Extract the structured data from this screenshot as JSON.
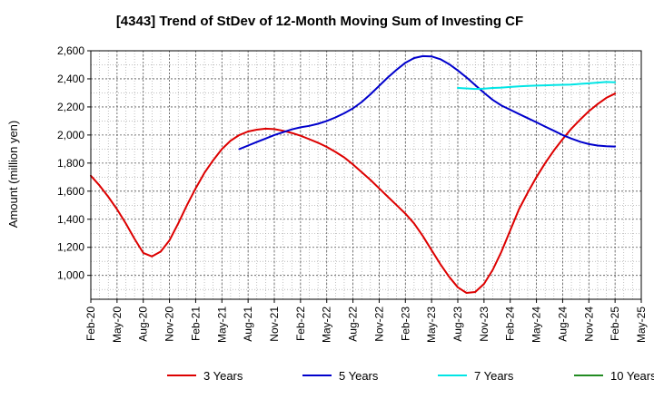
{
  "chart_data": {
    "type": "line",
    "title": "[4343]  Trend of StDev of 12-Month Moving Sum of Investing CF",
    "xlabel": "",
    "ylabel": "Amount (million yen)",
    "ylim": [
      830,
      2600
    ],
    "y_ticks": [
      1000,
      1200,
      1400,
      1600,
      1800,
      2000,
      2200,
      2400,
      2600
    ],
    "y_tick_labels": [
      "1,000",
      "1,200",
      "1,400",
      "1,600",
      "1,800",
      "2,000",
      "2,200",
      "2,400",
      "2,600"
    ],
    "x_tick_labels": [
      "Feb-20",
      "May-20",
      "Aug-20",
      "Nov-20",
      "Feb-21",
      "May-21",
      "Aug-21",
      "Nov-21",
      "Feb-22",
      "May-22",
      "Aug-22",
      "Nov-22",
      "Feb-23",
      "May-23",
      "Aug-23",
      "Nov-23",
      "Feb-24",
      "May-24",
      "Aug-24",
      "Nov-24",
      "Feb-25",
      "May-25"
    ],
    "grid": true,
    "legend_position": "bottom",
    "series": [
      {
        "name": "3 Years",
        "color": "#dd0000",
        "points": [
          [
            "Feb-20",
            1710
          ],
          [
            "Mar-20",
            1640
          ],
          [
            "Apr-20",
            1560
          ],
          [
            "May-20",
            1470
          ],
          [
            "Jun-20",
            1370
          ],
          [
            "Jul-20",
            1260
          ],
          [
            "Aug-20",
            1160
          ],
          [
            "Sep-20",
            1135
          ],
          [
            "Oct-20",
            1170
          ],
          [
            "Nov-20",
            1250
          ],
          [
            "Dec-20",
            1370
          ],
          [
            "Jan-21",
            1500
          ],
          [
            "Feb-21",
            1620
          ],
          [
            "Mar-21",
            1730
          ],
          [
            "Apr-21",
            1820
          ],
          [
            "May-21",
            1900
          ],
          [
            "Jun-21",
            1960
          ],
          [
            "Jul-21",
            2000
          ],
          [
            "Aug-21",
            2025
          ],
          [
            "Sep-21",
            2038
          ],
          [
            "Oct-21",
            2045
          ],
          [
            "Nov-21",
            2042
          ],
          [
            "Dec-21",
            2030
          ],
          [
            "Jan-22",
            2015
          ],
          [
            "Feb-22",
            1995
          ],
          [
            "Mar-22",
            1970
          ],
          [
            "Apr-22",
            1945
          ],
          [
            "May-22",
            1915
          ],
          [
            "Jun-22",
            1880
          ],
          [
            "Jul-22",
            1840
          ],
          [
            "Aug-22",
            1790
          ],
          [
            "Sep-22",
            1735
          ],
          [
            "Oct-22",
            1680
          ],
          [
            "Nov-22",
            1620
          ],
          [
            "Dec-22",
            1560
          ],
          [
            "Jan-23",
            1500
          ],
          [
            "Feb-23",
            1440
          ],
          [
            "Mar-23",
            1370
          ],
          [
            "Apr-23",
            1280
          ],
          [
            "May-23",
            1180
          ],
          [
            "Jun-23",
            1080
          ],
          [
            "Jul-23",
            990
          ],
          [
            "Aug-23",
            915
          ],
          [
            "Sep-23",
            875
          ],
          [
            "Oct-23",
            882
          ],
          [
            "Nov-23",
            940
          ],
          [
            "Dec-23",
            1040
          ],
          [
            "Jan-24",
            1170
          ],
          [
            "Feb-24",
            1320
          ],
          [
            "Mar-24",
            1470
          ],
          [
            "Apr-24",
            1590
          ],
          [
            "May-24",
            1700
          ],
          [
            "Jun-24",
            1800
          ],
          [
            "Jul-24",
            1890
          ],
          [
            "Aug-24",
            1970
          ],
          [
            "Sep-24",
            2045
          ],
          [
            "Oct-24",
            2110
          ],
          [
            "Nov-24",
            2170
          ],
          [
            "Dec-24",
            2220
          ],
          [
            "Jan-25",
            2265
          ],
          [
            "Feb-25",
            2295
          ]
        ]
      },
      {
        "name": "5 Years",
        "color": "#0000cc",
        "points": [
          [
            "Jul-21",
            1900
          ],
          [
            "Aug-21",
            1925
          ],
          [
            "Sep-21",
            1950
          ],
          [
            "Oct-21",
            1975
          ],
          [
            "Nov-21",
            2000
          ],
          [
            "Dec-21",
            2020
          ],
          [
            "Jan-22",
            2040
          ],
          [
            "Feb-22",
            2055
          ],
          [
            "Mar-22",
            2065
          ],
          [
            "Apr-22",
            2080
          ],
          [
            "May-22",
            2100
          ],
          [
            "Jun-22",
            2125
          ],
          [
            "Jul-22",
            2155
          ],
          [
            "Aug-22",
            2190
          ],
          [
            "Sep-22",
            2235
          ],
          [
            "Oct-22",
            2290
          ],
          [
            "Nov-22",
            2350
          ],
          [
            "Dec-22",
            2410
          ],
          [
            "Jan-23",
            2465
          ],
          [
            "Feb-23",
            2515
          ],
          [
            "Mar-23",
            2548
          ],
          [
            "Apr-23",
            2562
          ],
          [
            "May-23",
            2560
          ],
          [
            "Jun-23",
            2540
          ],
          [
            "Jul-23",
            2505
          ],
          [
            "Aug-23",
            2460
          ],
          [
            "Sep-23",
            2410
          ],
          [
            "Oct-23",
            2355
          ],
          [
            "Nov-23",
            2300
          ],
          [
            "Dec-23",
            2250
          ],
          [
            "Jan-24",
            2210
          ],
          [
            "Feb-24",
            2180
          ],
          [
            "Mar-24",
            2150
          ],
          [
            "Apr-24",
            2120
          ],
          [
            "May-24",
            2090
          ],
          [
            "Jun-24",
            2060
          ],
          [
            "Jul-24",
            2030
          ],
          [
            "Aug-24",
            2000
          ],
          [
            "Sep-24",
            1975
          ],
          [
            "Oct-24",
            1952
          ],
          [
            "Nov-24",
            1935
          ],
          [
            "Dec-24",
            1925
          ],
          [
            "Jan-25",
            1920
          ],
          [
            "Feb-25",
            1918
          ]
        ]
      },
      {
        "name": "7 Years",
        "color": "#00e5e5",
        "points": [
          [
            "Aug-23",
            2335
          ],
          [
            "Sep-23",
            2332
          ],
          [
            "Oct-23",
            2328
          ],
          [
            "Nov-23",
            2330
          ],
          [
            "Dec-23",
            2335
          ],
          [
            "Jan-24",
            2338
          ],
          [
            "Feb-24",
            2342
          ],
          [
            "Mar-24",
            2346
          ],
          [
            "Apr-24",
            2350
          ],
          [
            "May-24",
            2352
          ],
          [
            "Jun-24",
            2354
          ],
          [
            "Jul-24",
            2356
          ],
          [
            "Aug-24",
            2358
          ],
          [
            "Sep-24",
            2360
          ],
          [
            "Oct-24",
            2364
          ],
          [
            "Nov-24",
            2368
          ],
          [
            "Dec-24",
            2373
          ],
          [
            "Jan-25",
            2378
          ],
          [
            "Feb-25",
            2375
          ]
        ]
      },
      {
        "name": "10 Years",
        "color": "#228b22",
        "points": []
      }
    ]
  }
}
